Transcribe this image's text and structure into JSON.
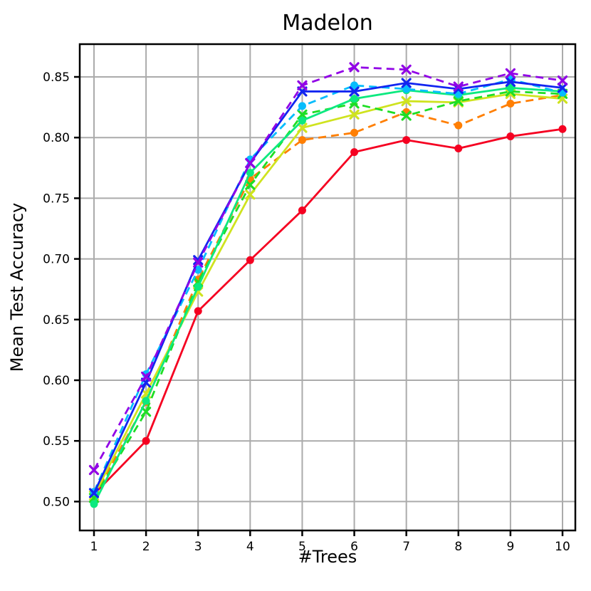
{
  "title": "Madelon",
  "chart_data": {
    "type": "line",
    "title": "Madelon",
    "xlabel": "#Trees",
    "ylabel": "Mean Test Accuracy",
    "x": [
      1,
      2,
      3,
      4,
      5,
      6,
      7,
      8,
      9,
      10
    ],
    "xtick_labels": [
      "1",
      "2",
      "3",
      "4",
      "5",
      "6",
      "7",
      "8",
      "9",
      "10"
    ],
    "ytick_values": [
      0.5,
      0.55,
      0.6,
      0.65,
      0.7,
      0.75,
      0.8,
      0.85
    ],
    "ytick_labels": [
      "0.50",
      "0.55",
      "0.60",
      "0.65",
      "0.70",
      "0.75",
      "0.80",
      "0.85"
    ],
    "xlim": [
      0.73,
      10.25
    ],
    "ylim": [
      0.476,
      0.877
    ],
    "grid": true,
    "legend_position": "none",
    "grid_color": "#ababab",
    "spine_color": "#000000",
    "series": [
      {
        "name": "red-solid-circle",
        "color": "#f50021",
        "linestyle": "solid",
        "marker": "circle",
        "values": [
          0.506,
          0.55,
          0.657,
          0.699,
          0.74,
          0.788,
          0.798,
          0.791,
          0.801,
          0.807
        ]
      },
      {
        "name": "orange-dashed-circle",
        "color": "#ff7f03",
        "linestyle": "dashed",
        "marker": "circle",
        "values": [
          0.504,
          0.582,
          0.683,
          0.766,
          0.798,
          0.804,
          0.821,
          0.81,
          0.828,
          0.835
        ]
      },
      {
        "name": "yellow-solid-x",
        "color": "#cfe31f",
        "linestyle": "solid",
        "marker": "x",
        "values": [
          0.505,
          0.589,
          0.673,
          0.753,
          0.808,
          0.819,
          0.83,
          0.829,
          0.836,
          0.832
        ]
      },
      {
        "name": "green-dashed-x",
        "color": "#1ede24",
        "linestyle": "dashed",
        "marker": "x",
        "values": [
          0.503,
          0.574,
          0.681,
          0.761,
          0.819,
          0.828,
          0.818,
          0.83,
          0.838,
          0.836
        ]
      },
      {
        "name": "springgreen-solid-circle",
        "color": "#0ce97f",
        "linestyle": "solid",
        "marker": "circle",
        "values": [
          0.498,
          0.583,
          0.677,
          0.771,
          0.814,
          0.832,
          0.839,
          0.835,
          0.841,
          0.838
        ]
      },
      {
        "name": "cyan-dashed-circle",
        "color": "#06bdfc",
        "linestyle": "dashed",
        "marker": "circle",
        "values": [
          0.508,
          0.605,
          0.691,
          0.782,
          0.826,
          0.843,
          0.84,
          0.836,
          0.848,
          0.837
        ]
      },
      {
        "name": "blue-solid-x",
        "color": "#1225f0",
        "linestyle": "solid",
        "marker": "x",
        "values": [
          0.507,
          0.598,
          0.699,
          0.779,
          0.838,
          0.838,
          0.845,
          0.84,
          0.846,
          0.841
        ]
      },
      {
        "name": "purple-dashed-x",
        "color": "#9103e6",
        "linestyle": "dashed",
        "marker": "x",
        "values": [
          0.526,
          0.603,
          0.697,
          0.779,
          0.843,
          0.858,
          0.856,
          0.842,
          0.853,
          0.847
        ]
      }
    ]
  }
}
